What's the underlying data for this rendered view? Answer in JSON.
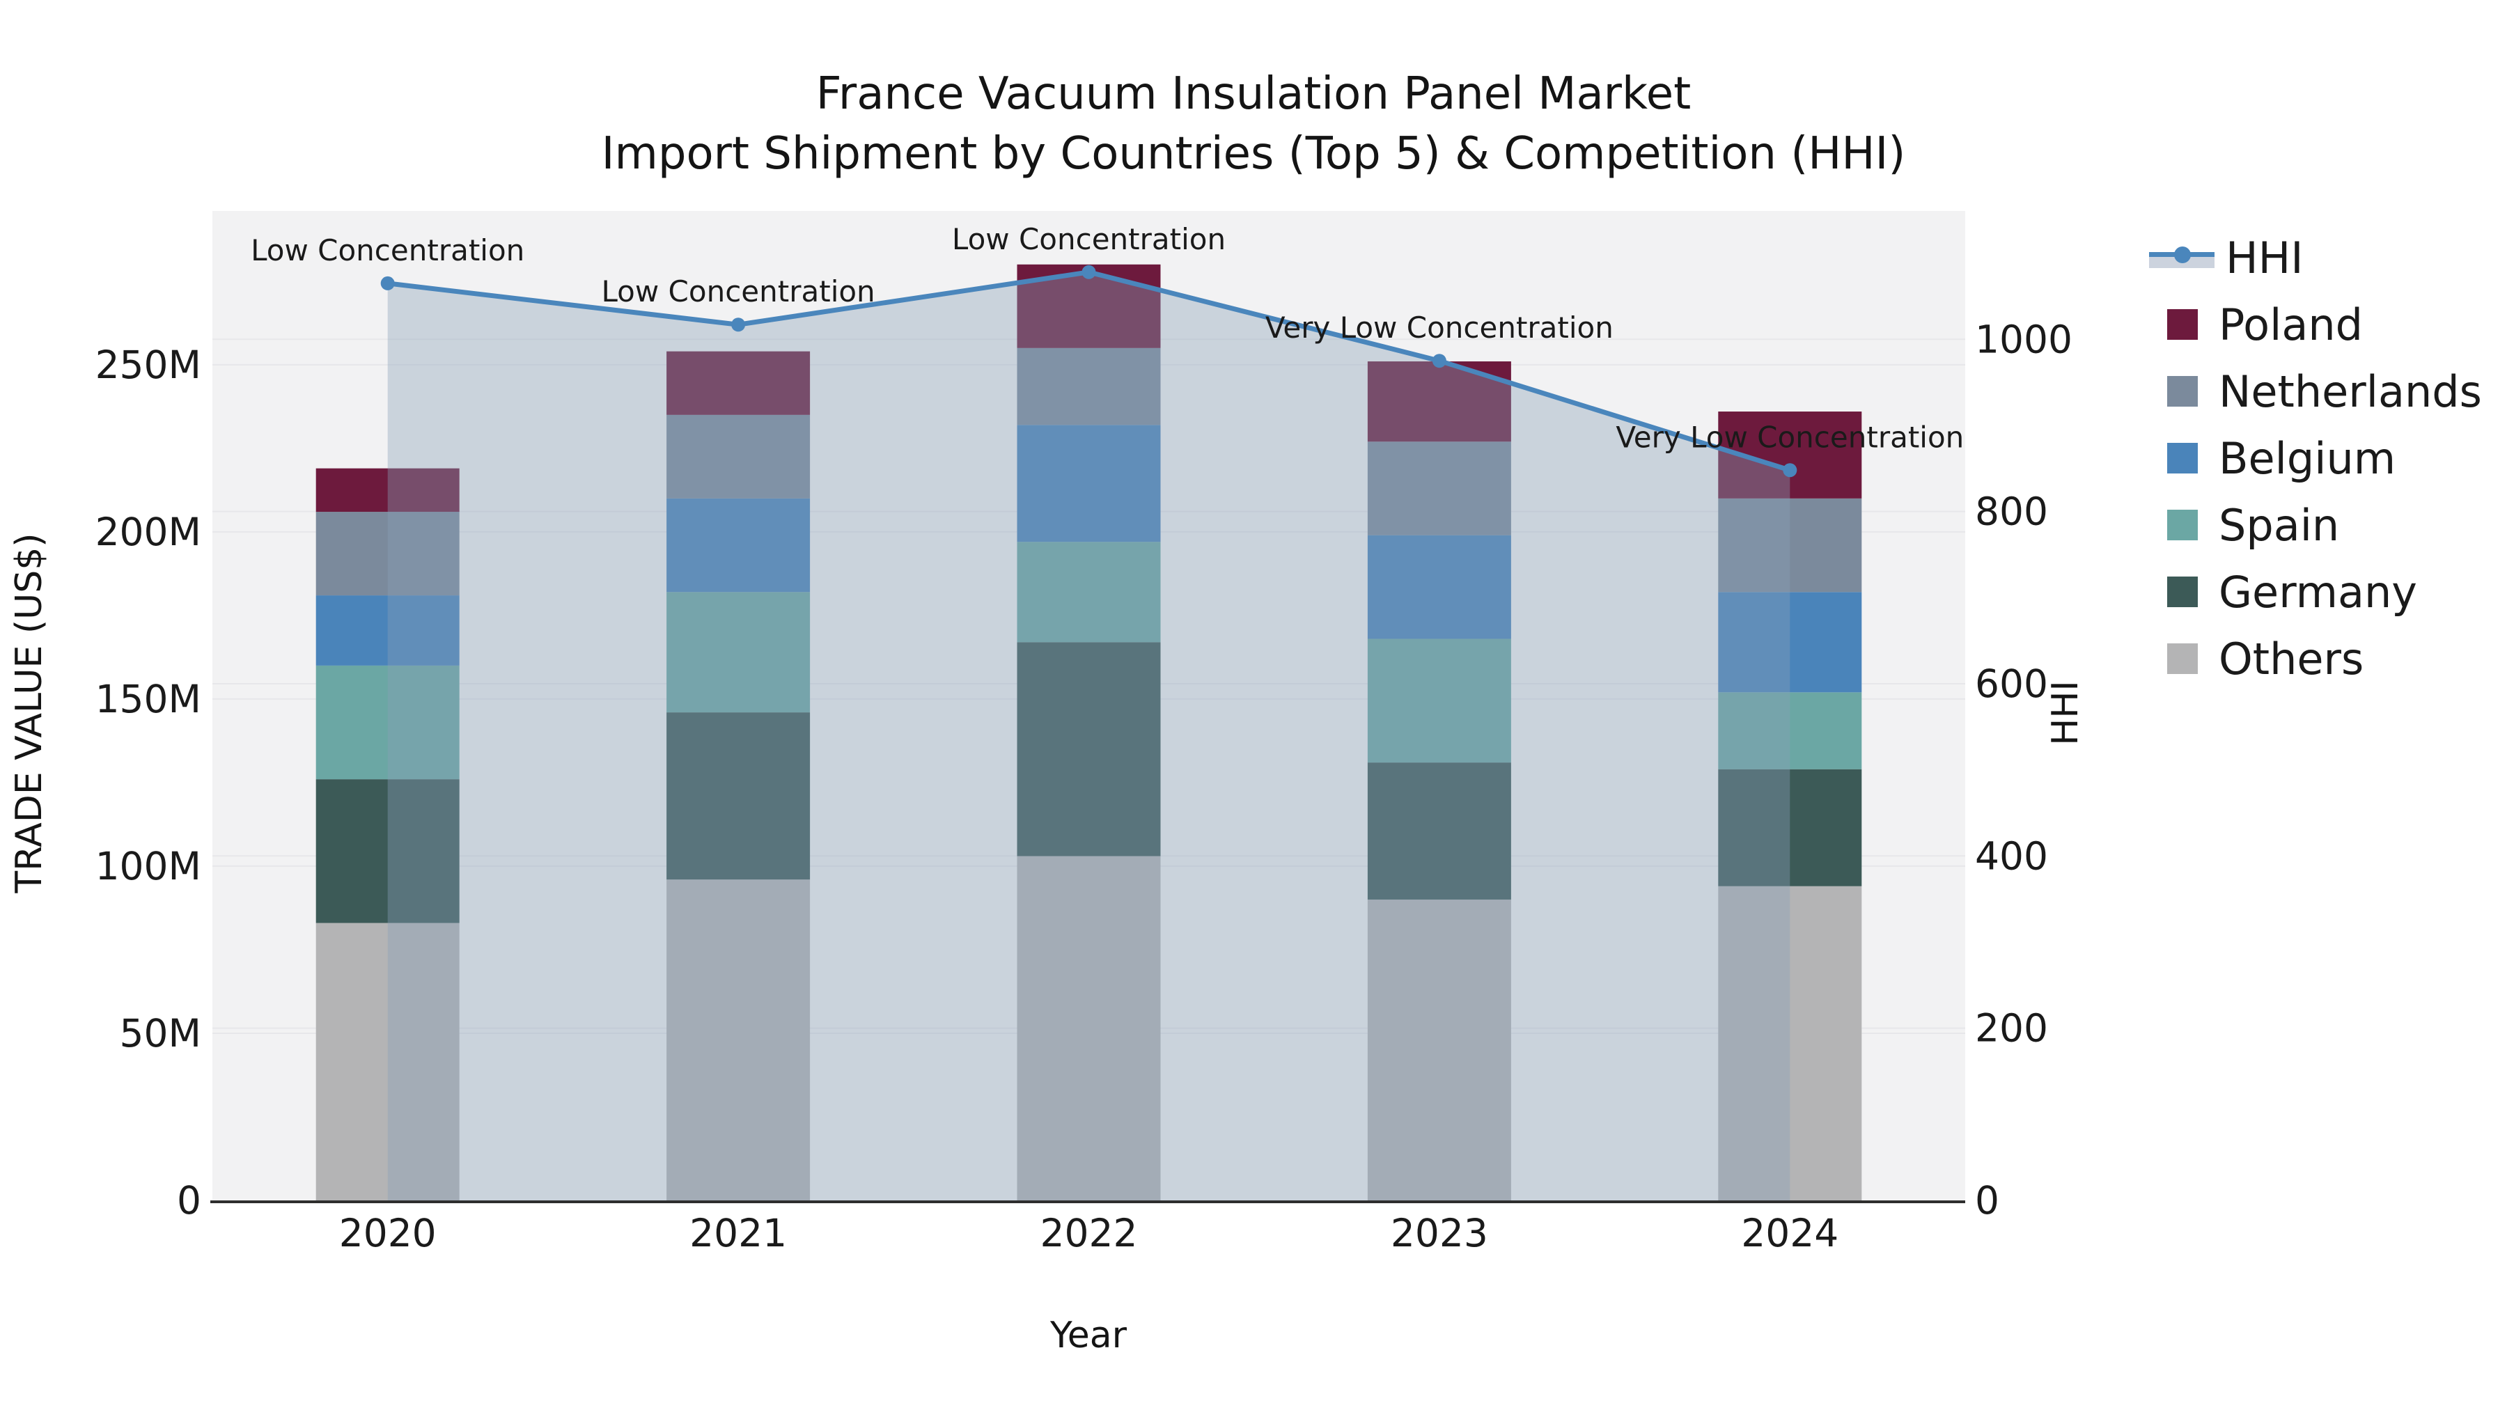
{
  "title": {
    "line1": "France Vacuum Insulation Panel Market",
    "line2": "Import Shipment by Countries (Top 5) & Competition (HHI)"
  },
  "axes": {
    "x_label": "Year",
    "y_left_label": "TRADE VALUE (US$)",
    "y_right_label": "HHI",
    "x_tick_labels": [
      "2020",
      "2021",
      "2022",
      "2023",
      "2024"
    ],
    "y_left_tick_labels": [
      "0",
      "50M",
      "100M",
      "150M",
      "200M",
      "250M"
    ],
    "y_right_tick_labels": [
      "0",
      "200",
      "400",
      "600",
      "800",
      "1000"
    ]
  },
  "legend": {
    "items": [
      {
        "label": "HHI",
        "swatch": "line",
        "color": "#4a86bc"
      },
      {
        "label": "Poland",
        "swatch": "box",
        "color": "#6d1a3d"
      },
      {
        "label": "Netherlands",
        "swatch": "box",
        "color": "#7b8a9c"
      },
      {
        "label": "Belgium",
        "swatch": "box",
        "color": "#4a84ba"
      },
      {
        "label": "Spain",
        "swatch": "box",
        "color": "#6ba7a4"
      },
      {
        "label": "Germany",
        "swatch": "box",
        "color": "#3c5a57"
      },
      {
        "label": "Others",
        "swatch": "box",
        "color": "#b4b4b5"
      }
    ]
  },
  "chart_data": {
    "type": "combo-stacked-bar-line",
    "title": "France Vacuum Insulation Panel Market — Import Shipment by Countries (Top 5) & Competition (HHI)",
    "categories": [
      "2020",
      "2021",
      "2022",
      "2023",
      "2024"
    ],
    "bar_unit": "M US$ (trade value)",
    "series": [
      {
        "name": "Others",
        "color": "#b4b4b5",
        "values": [
          83,
          96,
          103,
          90,
          94
        ]
      },
      {
        "name": "Germany",
        "color": "#3c5a57",
        "values": [
          43,
          50,
          64,
          41,
          35
        ]
      },
      {
        "name": "Spain",
        "color": "#6ba7a4",
        "values": [
          34,
          36,
          30,
          37,
          23
        ]
      },
      {
        "name": "Belgium",
        "color": "#4a84ba",
        "values": [
          21,
          28,
          35,
          31,
          30
        ]
      },
      {
        "name": "Netherlands",
        "color": "#7b8a9c",
        "values": [
          25,
          25,
          23,
          28,
          28
        ]
      },
      {
        "name": "Poland",
        "color": "#6d1a3d",
        "values": [
          13,
          19,
          25,
          24,
          26
        ]
      }
    ],
    "bar_totals": [
      219,
      254,
      280,
      251,
      236
    ],
    "line_series": {
      "name": "HHI",
      "color": "#4a86bc",
      "fill_color": "#88a0b7",
      "fill_opacity": 0.38,
      "values": [
        1065,
        1017,
        1078,
        975,
        848
      ],
      "annotations": [
        "Low Concentration",
        "Low Concentration",
        "Low Concentration",
        "Very Low Concentration",
        "Very Low Concentration"
      ]
    },
    "xlabel": "Year",
    "ylabel_left": "TRADE VALUE (US$)",
    "ylabel_right": "HHI",
    "ylim_left": [
      0,
      296
    ],
    "ylim_right": [
      0,
      1149
    ],
    "y_left_tick_values": [
      0,
      50,
      100,
      150,
      200,
      250
    ],
    "y_right_tick_values": [
      0,
      200,
      400,
      600,
      800,
      1000
    ],
    "grid": true,
    "legend_position": "right",
    "plot_bg": "#f2f2f3",
    "grid_color": "#e7e7ea",
    "spine_color": "#2e2e2e",
    "text_color": "#1a1a1a"
  }
}
